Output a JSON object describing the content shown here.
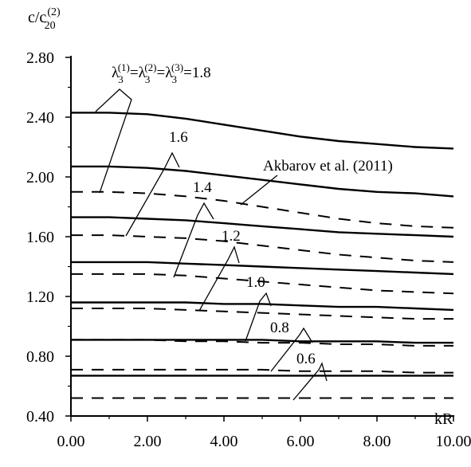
{
  "chart_data": {
    "type": "line",
    "xlabel": "kR",
    "ylabel": "c/c",
    "ylabel_sub": "20",
    "ylabel_sup": "(2)",
    "xlim": [
      0,
      10
    ],
    "ylim": [
      0.4,
      2.8
    ],
    "x_ticks": [
      "0.00",
      "2.00",
      "4.00",
      "6.00",
      "8.00",
      "10.00"
    ],
    "y_ticks": [
      "0.40",
      "0.80",
      "1.20",
      "1.60",
      "2.00",
      "2.40",
      "2.80"
    ],
    "grid": false,
    "series": [
      {
        "lambda": "1.8",
        "style": "solid",
        "x": [
          0,
          1,
          2,
          3,
          4,
          5,
          6,
          7,
          8,
          9,
          10
        ],
        "y": [
          2.43,
          2.43,
          2.42,
          2.39,
          2.35,
          2.31,
          2.27,
          2.24,
          2.22,
          2.2,
          2.19
        ]
      },
      {
        "lambda": "1.6",
        "style": "solid",
        "x": [
          0,
          1,
          2,
          3,
          4,
          5,
          6,
          7,
          8,
          9,
          10
        ],
        "y": [
          2.07,
          2.07,
          2.06,
          2.04,
          2.01,
          1.98,
          1.95,
          1.92,
          1.9,
          1.89,
          1.87
        ]
      },
      {
        "lambda": "1.4",
        "style": "solid",
        "x": [
          0,
          1,
          2,
          3,
          4,
          5,
          6,
          7,
          8,
          9,
          10
        ],
        "y": [
          1.73,
          1.73,
          1.72,
          1.71,
          1.69,
          1.67,
          1.65,
          1.63,
          1.62,
          1.61,
          1.6
        ]
      },
      {
        "lambda": "1.2",
        "style": "solid",
        "x": [
          0,
          1,
          2,
          3,
          4,
          5,
          6,
          7,
          8,
          9,
          10
        ],
        "y": [
          1.43,
          1.43,
          1.43,
          1.42,
          1.41,
          1.4,
          1.39,
          1.38,
          1.37,
          1.36,
          1.35
        ]
      },
      {
        "lambda": "1.0",
        "style": "solid",
        "x": [
          0,
          1,
          2,
          3,
          4,
          5,
          6,
          7,
          8,
          9,
          10
        ],
        "y": [
          1.16,
          1.16,
          1.16,
          1.16,
          1.15,
          1.15,
          1.14,
          1.13,
          1.13,
          1.12,
          1.11
        ]
      },
      {
        "lambda": "0.8",
        "style": "solid",
        "x": [
          0,
          1,
          2,
          3,
          4,
          5,
          6,
          7,
          8,
          9,
          10
        ],
        "y": [
          0.91,
          0.91,
          0.91,
          0.91,
          0.91,
          0.91,
          0.9,
          0.9,
          0.9,
          0.89,
          0.89
        ]
      },
      {
        "lambda": "0.6",
        "style": "solid",
        "x": [
          0,
          1,
          2,
          3,
          4,
          5,
          6,
          7,
          8,
          9,
          10
        ],
        "y": [
          0.67,
          0.67,
          0.67,
          0.67,
          0.67,
          0.67,
          0.67,
          0.67,
          0.67,
          0.67,
          0.67
        ]
      },
      {
        "lambda": "1.8",
        "style": "dashed",
        "x": [
          0,
          1,
          2,
          3,
          4,
          5,
          6,
          7,
          8,
          9,
          10
        ],
        "y": [
          1.9,
          1.9,
          1.89,
          1.87,
          1.84,
          1.8,
          1.76,
          1.72,
          1.69,
          1.67,
          1.66
        ]
      },
      {
        "lambda": "1.6",
        "style": "dashed",
        "x": [
          0,
          1,
          2,
          3,
          4,
          5,
          6,
          7,
          8,
          9,
          10
        ],
        "y": [
          1.61,
          1.61,
          1.6,
          1.59,
          1.57,
          1.54,
          1.51,
          1.48,
          1.46,
          1.44,
          1.43
        ]
      },
      {
        "lambda": "1.4",
        "style": "dashed",
        "x": [
          0,
          1,
          2,
          3,
          4,
          5,
          6,
          7,
          8,
          9,
          10
        ],
        "y": [
          1.35,
          1.35,
          1.35,
          1.34,
          1.32,
          1.3,
          1.28,
          1.26,
          1.24,
          1.23,
          1.22
        ]
      },
      {
        "lambda": "1.2",
        "style": "dashed",
        "x": [
          0,
          1,
          2,
          3,
          4,
          5,
          6,
          7,
          8,
          9,
          10
        ],
        "y": [
          1.12,
          1.12,
          1.12,
          1.11,
          1.1,
          1.09,
          1.08,
          1.07,
          1.06,
          1.05,
          1.05
        ]
      },
      {
        "lambda": "1.0",
        "style": "dashed",
        "x": [
          0,
          1,
          2,
          3,
          4,
          5,
          6,
          7,
          8,
          9,
          10
        ],
        "y": [
          0.91,
          0.91,
          0.91,
          0.9,
          0.9,
          0.89,
          0.89,
          0.88,
          0.88,
          0.87,
          0.87
        ]
      },
      {
        "lambda": "0.8",
        "style": "dashed",
        "x": [
          0,
          1,
          2,
          3,
          4,
          5,
          6,
          7,
          8,
          9,
          10
        ],
        "y": [
          0.71,
          0.71,
          0.71,
          0.71,
          0.71,
          0.71,
          0.7,
          0.7,
          0.7,
          0.69,
          0.69
        ]
      },
      {
        "lambda": "0.6",
        "style": "dashed",
        "x": [
          0,
          1,
          2,
          3,
          4,
          5,
          6,
          7,
          8,
          9,
          10
        ],
        "y": [
          0.52,
          0.52,
          0.52,
          0.52,
          0.52,
          0.52,
          0.52,
          0.52,
          0.52,
          0.52,
          0.52
        ]
      }
    ],
    "annotations": {
      "top_left": "λ",
      "top_sub": "3",
      "top_sup1": "(1)",
      "top_sup2": "(2)",
      "top_sup3": "(3)",
      "top_value": "=1.8",
      "eq": "=",
      "label_1_6": "1.6",
      "label_1_4": "1.4",
      "label_1_2": "1.2",
      "label_1_0": "1.0",
      "label_0_8": "0.8",
      "label_0_6": "0.6",
      "reference": "Akbarov et al. (2011)"
    }
  }
}
